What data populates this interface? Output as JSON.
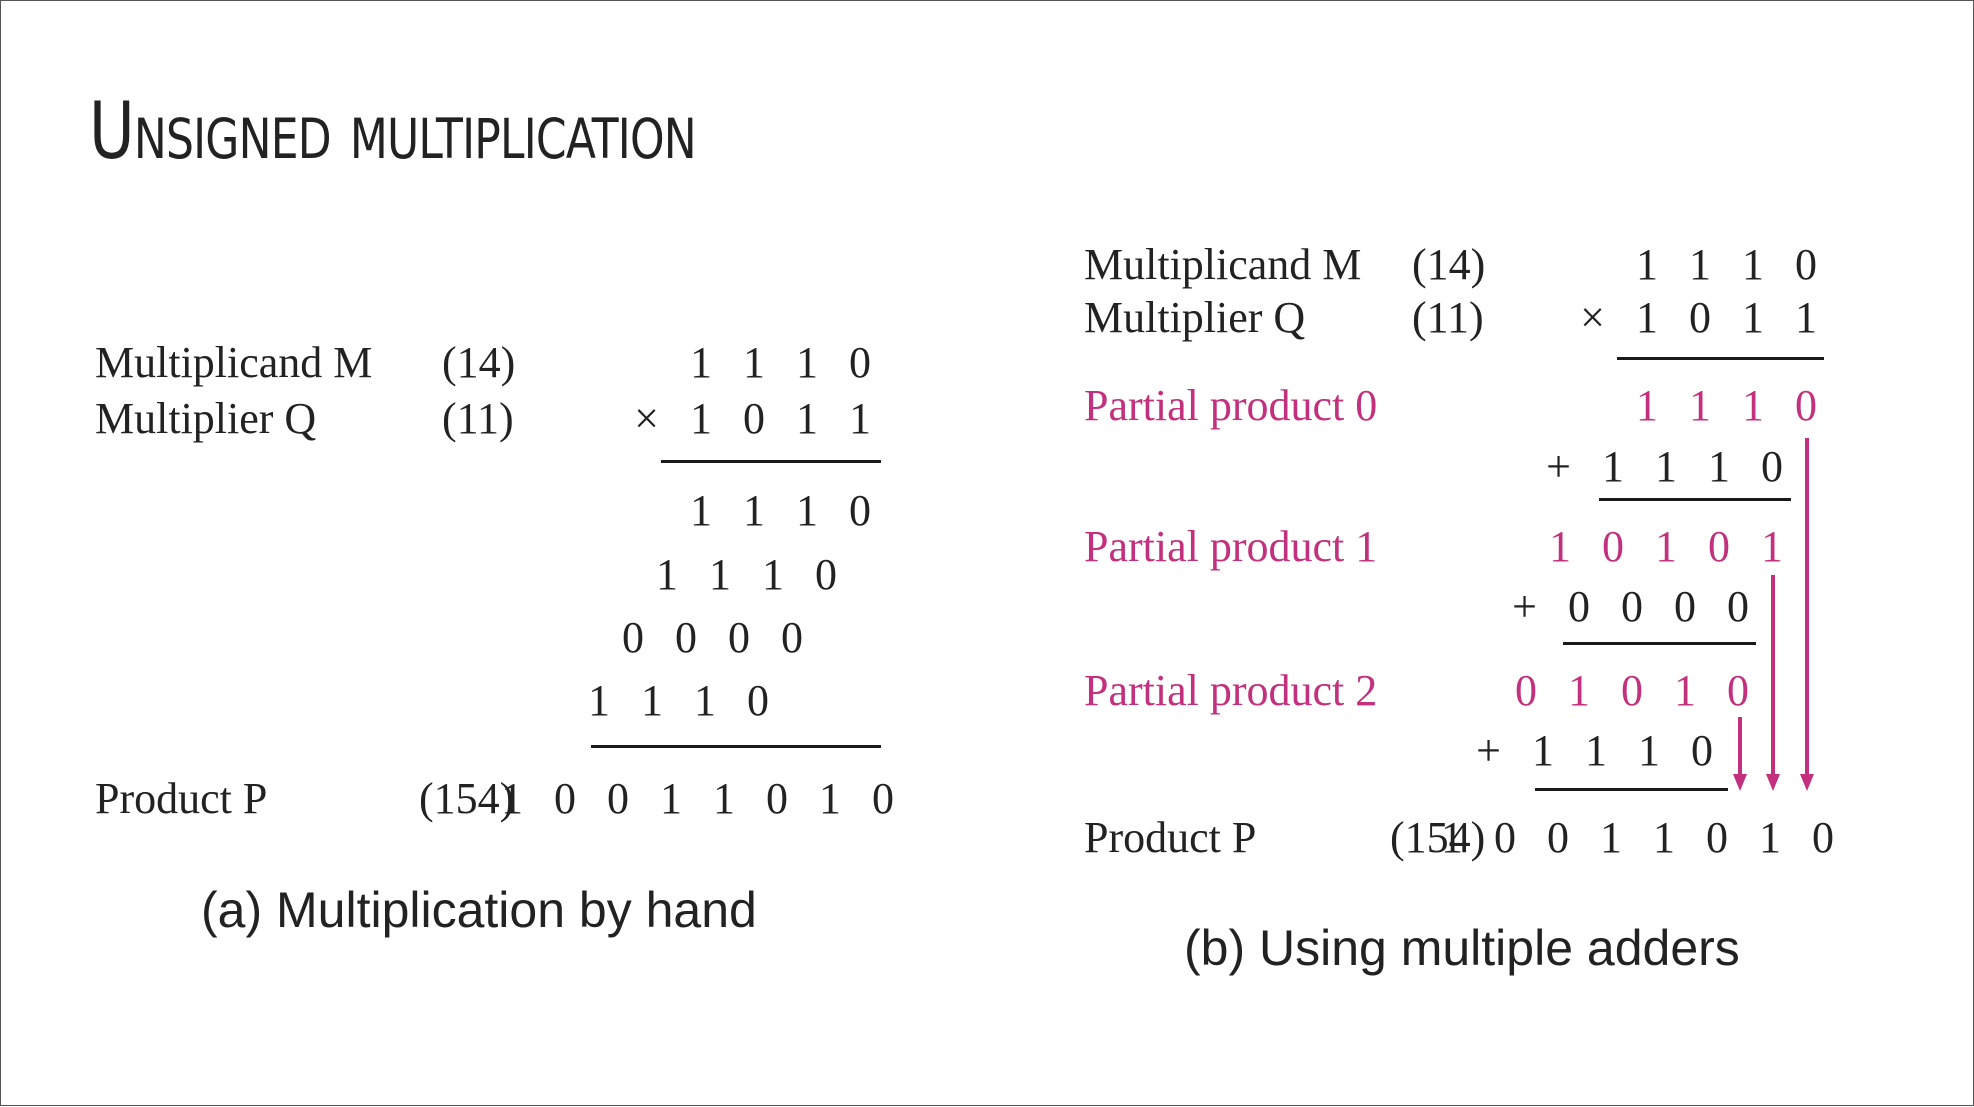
{
  "title": "Unsigned multiplication",
  "colors": {
    "partial": "#c2307e",
    "text": "#222222"
  },
  "panel_a": {
    "multiplicand_label": "Multiplicand M",
    "multiplicand_dec": "(14)",
    "multiplicand_bin": "1 1 1 0",
    "multiplier_label": "Multiplier Q",
    "multiplier_dec": "(11)",
    "multiplier_bin": "× 1 0 1 1",
    "rows": [
      "1 1 1 0",
      "1 1 1 0",
      "0 0 0 0",
      "1 1 1 0"
    ],
    "product_label": "Product P",
    "product_dec": "(154)",
    "product_bin": "1 0 0 1 1 0 1 0",
    "caption": "(a) Multiplication by hand"
  },
  "panel_b": {
    "multiplicand_label": "Multiplicand M",
    "multiplicand_dec": "(14)",
    "multiplicand_bin": "1 1 1 0",
    "multiplier_label": "Multiplier Q",
    "multiplier_dec": "(11)",
    "multiplier_bin": "× 1 0 1 1",
    "pp0_label": "Partial product 0",
    "pp0_value": "1 1 1 0",
    "add1": "+ 1 1 1 0",
    "pp1_label": "Partial product 1",
    "pp1_value": "1 0 1 0 1",
    "add2": "+ 0 0 0 0",
    "pp2_label": "Partial product 2",
    "pp2_value": "0 1 0 1 0",
    "add3": "+ 1 1 1 0",
    "product_label": "Product P",
    "product_dec": "(154)",
    "product_bin": "1 0 0 1 1 0 1 0",
    "caption": "(b) Using multiple adders"
  }
}
